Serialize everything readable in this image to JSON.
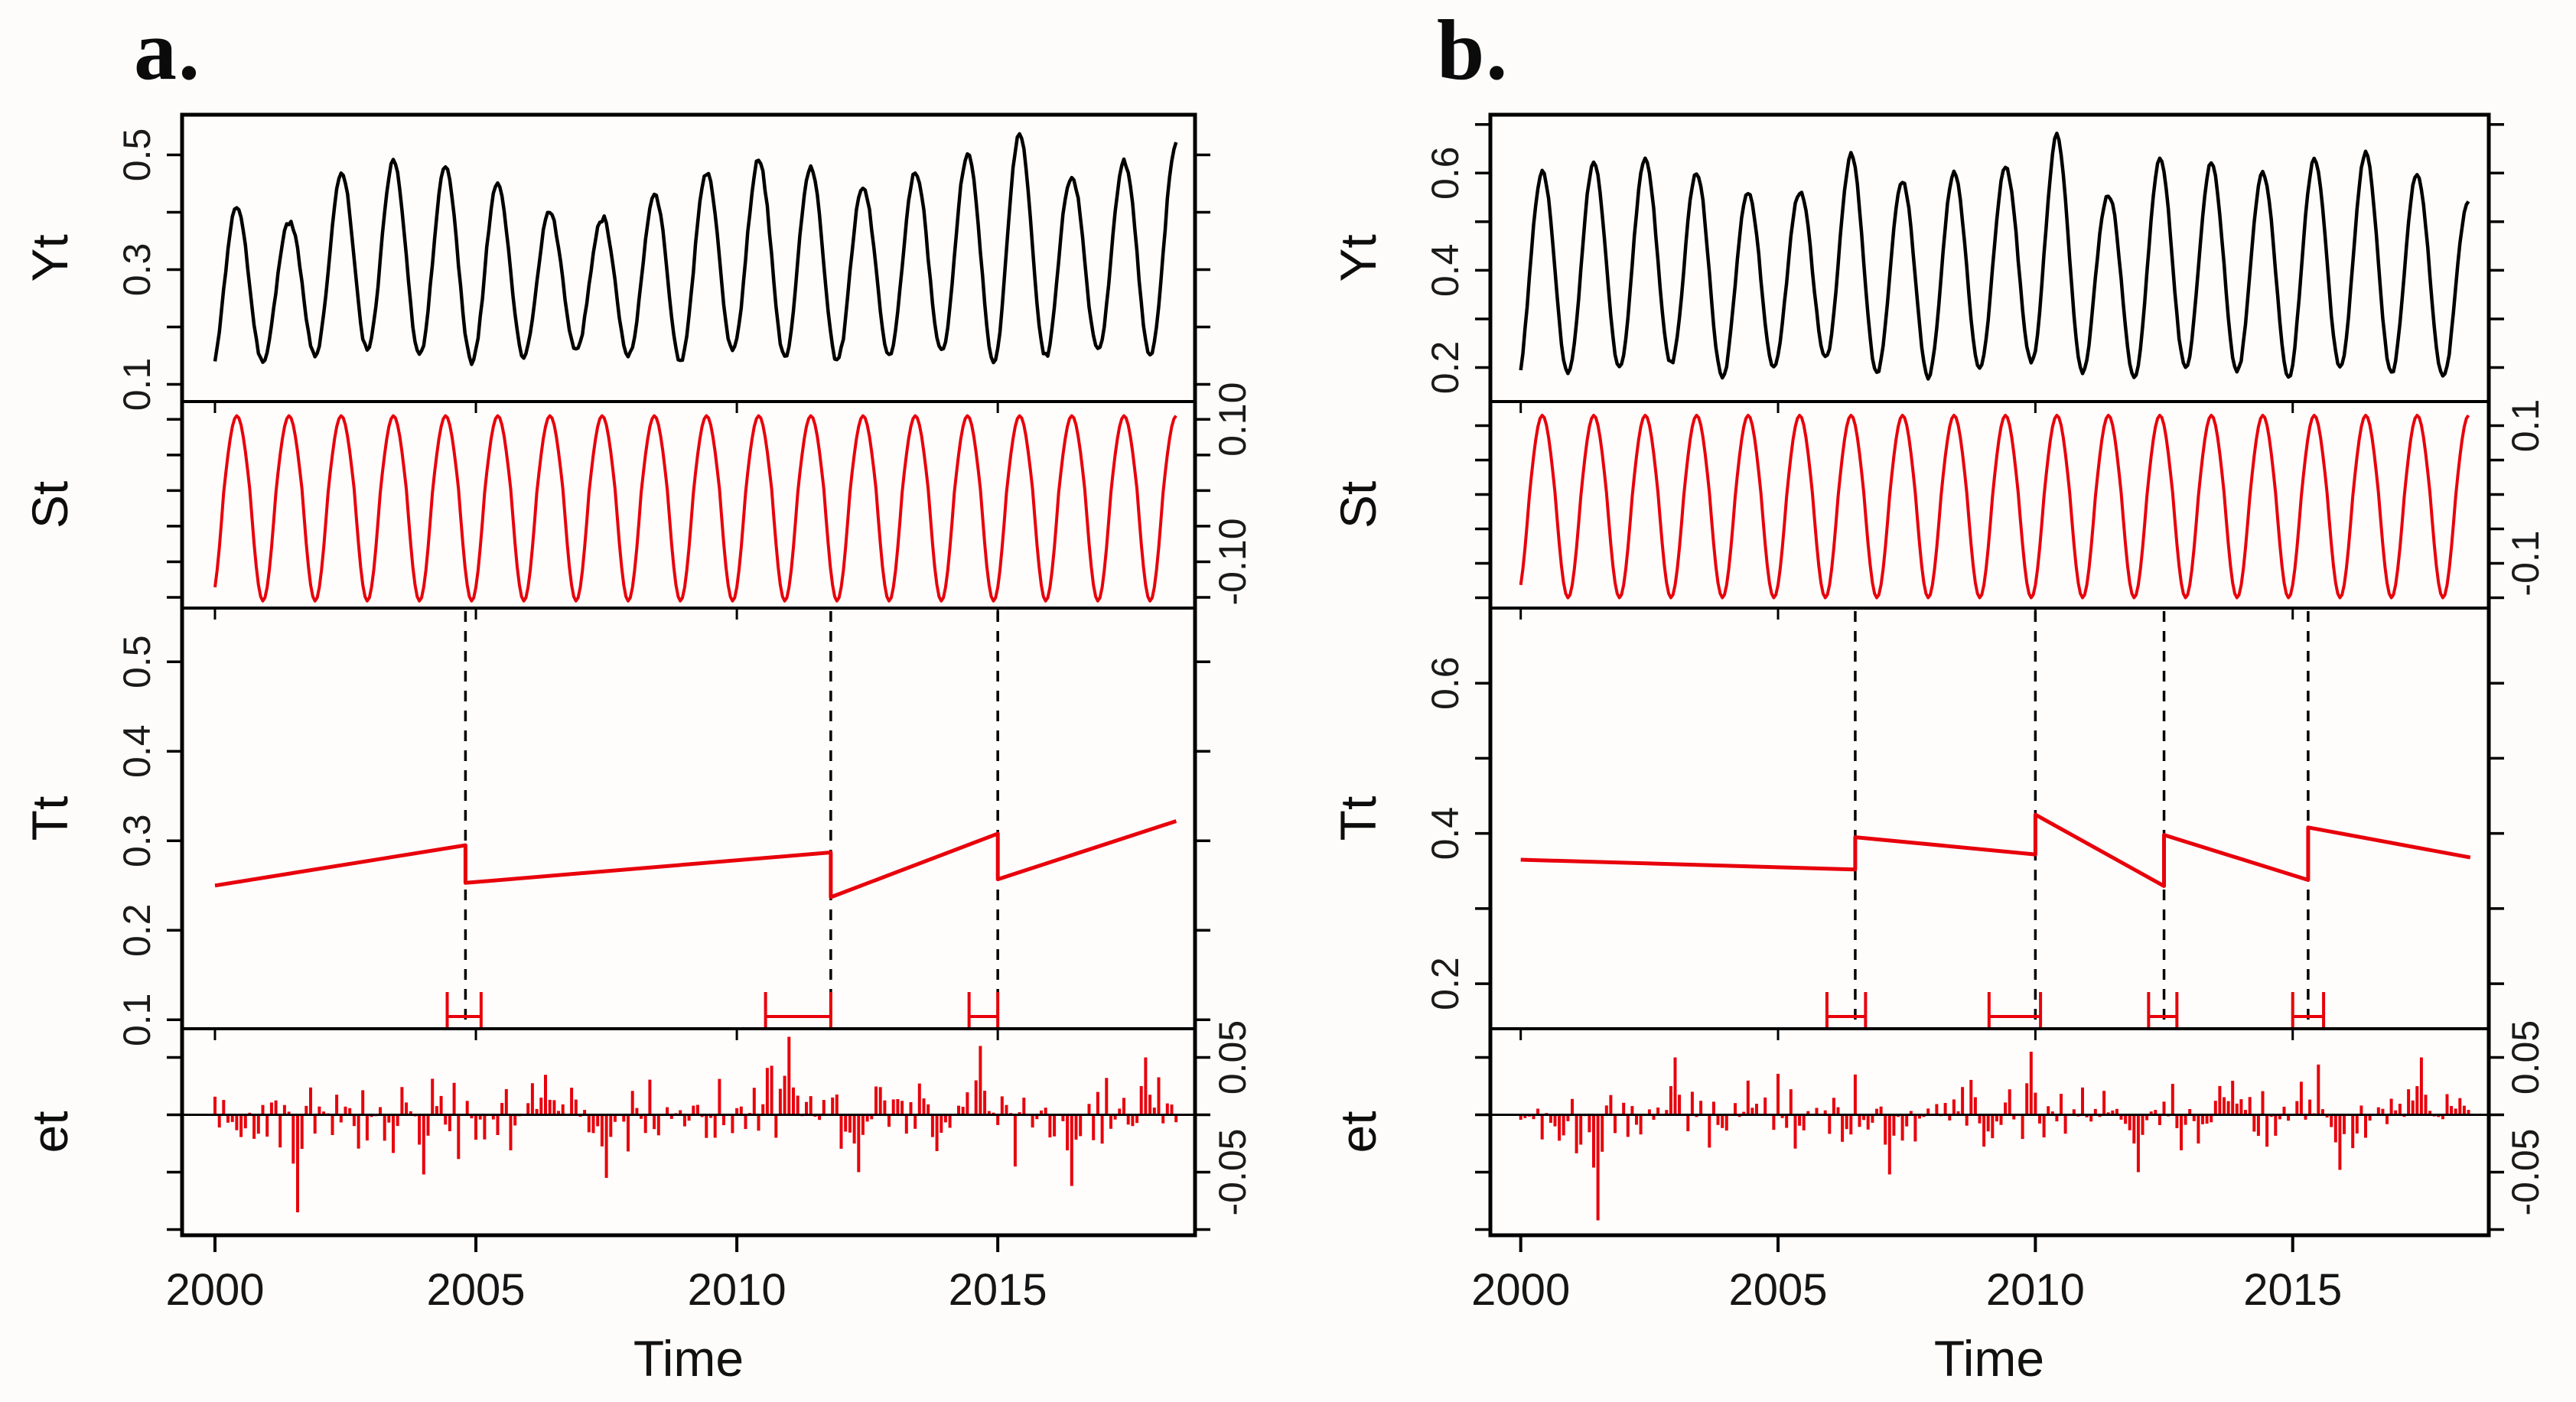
{
  "chart_data": [
    {
      "type": "line",
      "subtype": "time-series-decomposition",
      "title": "a.",
      "xlabel": "Time",
      "x_range": [
        1999.37,
        2018.78
      ],
      "x_ticks": [
        {
          "v": 2000,
          "label": "2000"
        },
        {
          "v": 2005,
          "label": "2005"
        },
        {
          "v": 2010,
          "label": "2010"
        },
        {
          "v": 2015,
          "label": "2015"
        }
      ],
      "colors": {
        "observed": "#000000",
        "seasonal": "#e8000b",
        "trend": "#e8000b",
        "residual": "#e8000b",
        "breakline": "#000000",
        "ci": "#e8000b"
      },
      "rows": [
        {
          "id": "Yt",
          "label": "Yt",
          "tick_side": "left",
          "value_range": [
            0.07,
            0.57
          ],
          "ticks": [
            {
              "v": 0.1,
              "label": "0.1"
            },
            {
              "v": 0.2
            },
            {
              "v": 0.3,
              "label": "0.3"
            },
            {
              "v": 0.4
            },
            {
              "v": 0.5,
              "label": "0.5"
            }
          ]
        },
        {
          "id": "St",
          "label": "St",
          "tick_side": "right",
          "value_range": [
            -0.165,
            0.125
          ],
          "ticks": [
            {
              "v": -0.15
            },
            {
              "v": -0.1,
              "label": "-0.10"
            },
            {
              "v": -0.05
            },
            {
              "v": 0
            },
            {
              "v": 0.05
            },
            {
              "v": 0.1,
              "label": "0.10"
            }
          ]
        },
        {
          "id": "Tt",
          "label": "Tt",
          "tick_side": "left",
          "value_range": [
            0.09,
            0.56
          ],
          "ticks": [
            {
              "v": 0.1,
              "label": "0.1"
            },
            {
              "v": 0.2,
              "label": "0.2"
            },
            {
              "v": 0.3,
              "label": "0.3"
            },
            {
              "v": 0.4,
              "label": "0.4"
            },
            {
              "v": 0.5,
              "label": "0.5"
            }
          ]
        },
        {
          "id": "et",
          "label": "et",
          "tick_side": "right",
          "value_range": [
            -0.105,
            0.075
          ],
          "ticks": [
            {
              "v": -0.1
            },
            {
              "v": -0.05,
              "label": "-0.05"
            },
            {
              "v": 0
            },
            {
              "v": 0.05,
              "label": "0.05"
            }
          ]
        }
      ],
      "observed": {
        "start": 2000.0,
        "end": 2018.42,
        "peak_phase": 0.42,
        "peaks": [
          0.41,
          0.38,
          0.47,
          0.49,
          0.48,
          0.45,
          0.4,
          0.39,
          0.43,
          0.47,
          0.49,
          0.48,
          0.44,
          0.47,
          0.5,
          0.54,
          0.46,
          0.49,
          0.52
        ],
        "troughs": [
          0.12,
          0.14,
          0.15,
          0.16,
          0.15,
          0.14,
          0.15,
          0.16,
          0.15,
          0.14,
          0.16,
          0.15,
          0.14,
          0.15,
          0.16,
          0.14,
          0.15,
          0.16,
          0.15
        ],
        "noise_seed": 11,
        "noise_sd": 0.005
      },
      "seasonal": {
        "period": 1,
        "amp_pos": 0.105,
        "amp_neg": 0.155
      },
      "trend_segments": [
        [
          [
            2000.0,
            0.25
          ],
          [
            2004.8,
            0.295
          ]
        ],
        [
          [
            2004.8,
            0.253
          ],
          [
            2011.8,
            0.287
          ]
        ],
        [
          [
            2011.8,
            0.237
          ],
          [
            2015.0,
            0.308
          ]
        ],
        [
          [
            2015.0,
            0.257
          ],
          [
            2018.42,
            0.322
          ]
        ]
      ],
      "breakpoints": [
        2004.8,
        2011.8,
        2015.0
      ],
      "breakpoint_ci": [
        [
          2004.45,
          2005.1
        ],
        [
          2010.55,
          2011.8
        ],
        [
          2014.45,
          2015.0
        ]
      ],
      "residual": {
        "start": 2000.0,
        "end": 2018.42,
        "per_year": 12,
        "seed": 42,
        "sd": 0.024,
        "extremes": [
          [
            2001.6,
            -0.085
          ],
          [
            2004.0,
            -0.052
          ],
          [
            2007.5,
            -0.055
          ],
          [
            2011.0,
            0.068
          ],
          [
            2012.3,
            -0.05
          ],
          [
            2014.7,
            0.06
          ],
          [
            2016.4,
            -0.062
          ],
          [
            2017.8,
            0.05
          ]
        ]
      }
    },
    {
      "type": "line",
      "subtype": "time-series-decomposition",
      "title": "b.",
      "xlabel": "Time",
      "x_range": [
        1999.41,
        2018.81
      ],
      "x_ticks": [
        {
          "v": 2000,
          "label": "2000"
        },
        {
          "v": 2005,
          "label": "2005"
        },
        {
          "v": 2010,
          "label": "2010"
        },
        {
          "v": 2015,
          "label": "2015"
        }
      ],
      "colors": {
        "observed": "#000000",
        "seasonal": "#e8000b",
        "trend": "#e8000b",
        "residual": "#e8000b",
        "breakline": "#000000",
        "ci": "#e8000b"
      },
      "rows": [
        {
          "id": "Yt",
          "label": "Yt",
          "tick_side": "left",
          "value_range": [
            0.13,
            0.72
          ],
          "ticks": [
            {
              "v": 0.2,
              "label": "0.2"
            },
            {
              "v": 0.3
            },
            {
              "v": 0.4,
              "label": "0.4"
            },
            {
              "v": 0.5
            },
            {
              "v": 0.6,
              "label": "0.6"
            },
            {
              "v": 0.7
            }
          ]
        },
        {
          "id": "St",
          "label": "St",
          "tick_side": "right",
          "value_range": [
            -0.165,
            0.135
          ],
          "ticks": [
            {
              "v": -0.15
            },
            {
              "v": -0.1,
              "label": "-0.1"
            },
            {
              "v": -0.05
            },
            {
              "v": 0
            },
            {
              "v": 0.05
            },
            {
              "v": 0.1,
              "label": "0.1"
            }
          ]
        },
        {
          "id": "Tt",
          "label": "Tt",
          "tick_side": "left",
          "value_range": [
            0.14,
            0.7
          ],
          "ticks": [
            {
              "v": 0.2,
              "label": "0.2"
            },
            {
              "v": 0.3
            },
            {
              "v": 0.4,
              "label": "0.4"
            },
            {
              "v": 0.5
            },
            {
              "v": 0.6,
              "label": "0.6"
            }
          ]
        },
        {
          "id": "et",
          "label": "et",
          "tick_side": "right",
          "value_range": [
            -0.105,
            0.075
          ],
          "ticks": [
            {
              "v": -0.1
            },
            {
              "v": -0.05,
              "label": "-0.05"
            },
            {
              "v": 0
            },
            {
              "v": 0.05,
              "label": "0.05"
            }
          ]
        }
      ],
      "observed": {
        "start": 2000.0,
        "end": 2018.45,
        "peak_phase": 0.42,
        "peaks": [
          0.6,
          0.62,
          0.63,
          0.6,
          0.56,
          0.56,
          0.64,
          0.58,
          0.6,
          0.61,
          0.68,
          0.55,
          0.63,
          0.62,
          0.6,
          0.63,
          0.64,
          0.6,
          0.54
        ],
        "troughs": [
          0.17,
          0.19,
          0.2,
          0.21,
          0.18,
          0.2,
          0.22,
          0.19,
          0.18,
          0.2,
          0.21,
          0.19,
          0.18,
          0.2,
          0.19,
          0.18,
          0.2,
          0.19,
          0.18
        ],
        "noise_seed": 23,
        "noise_sd": 0.005
      },
      "seasonal": {
        "period": 1,
        "amp_pos": 0.115,
        "amp_neg": 0.15
      },
      "trend_segments": [
        [
          [
            2000.0,
            0.365
          ],
          [
            2006.5,
            0.352
          ]
        ],
        [
          [
            2006.5,
            0.395
          ],
          [
            2010.0,
            0.372
          ]
        ],
        [
          [
            2010.0,
            0.425
          ],
          [
            2012.5,
            0.33
          ]
        ],
        [
          [
            2012.5,
            0.398
          ],
          [
            2015.3,
            0.338
          ]
        ],
        [
          [
            2015.3,
            0.408
          ],
          [
            2018.45,
            0.368
          ]
        ]
      ],
      "breakpoints": [
        2006.5,
        2010.0,
        2012.5,
        2015.3
      ],
      "breakpoint_ci": [
        [
          2005.95,
          2006.7
        ],
        [
          2009.1,
          2010.1
        ],
        [
          2012.2,
          2012.75
        ],
        [
          2015.0,
          2015.6
        ]
      ],
      "residual": {
        "start": 2000.0,
        "end": 2018.45,
        "per_year": 12,
        "seed": 1337,
        "sd": 0.022,
        "extremes": [
          [
            2001.5,
            -0.092
          ],
          [
            2003.0,
            0.05
          ],
          [
            2007.2,
            -0.052
          ],
          [
            2009.9,
            0.055
          ],
          [
            2012.0,
            -0.05
          ],
          [
            2015.9,
            -0.048
          ],
          [
            2017.5,
            0.05
          ]
        ]
      }
    }
  ]
}
